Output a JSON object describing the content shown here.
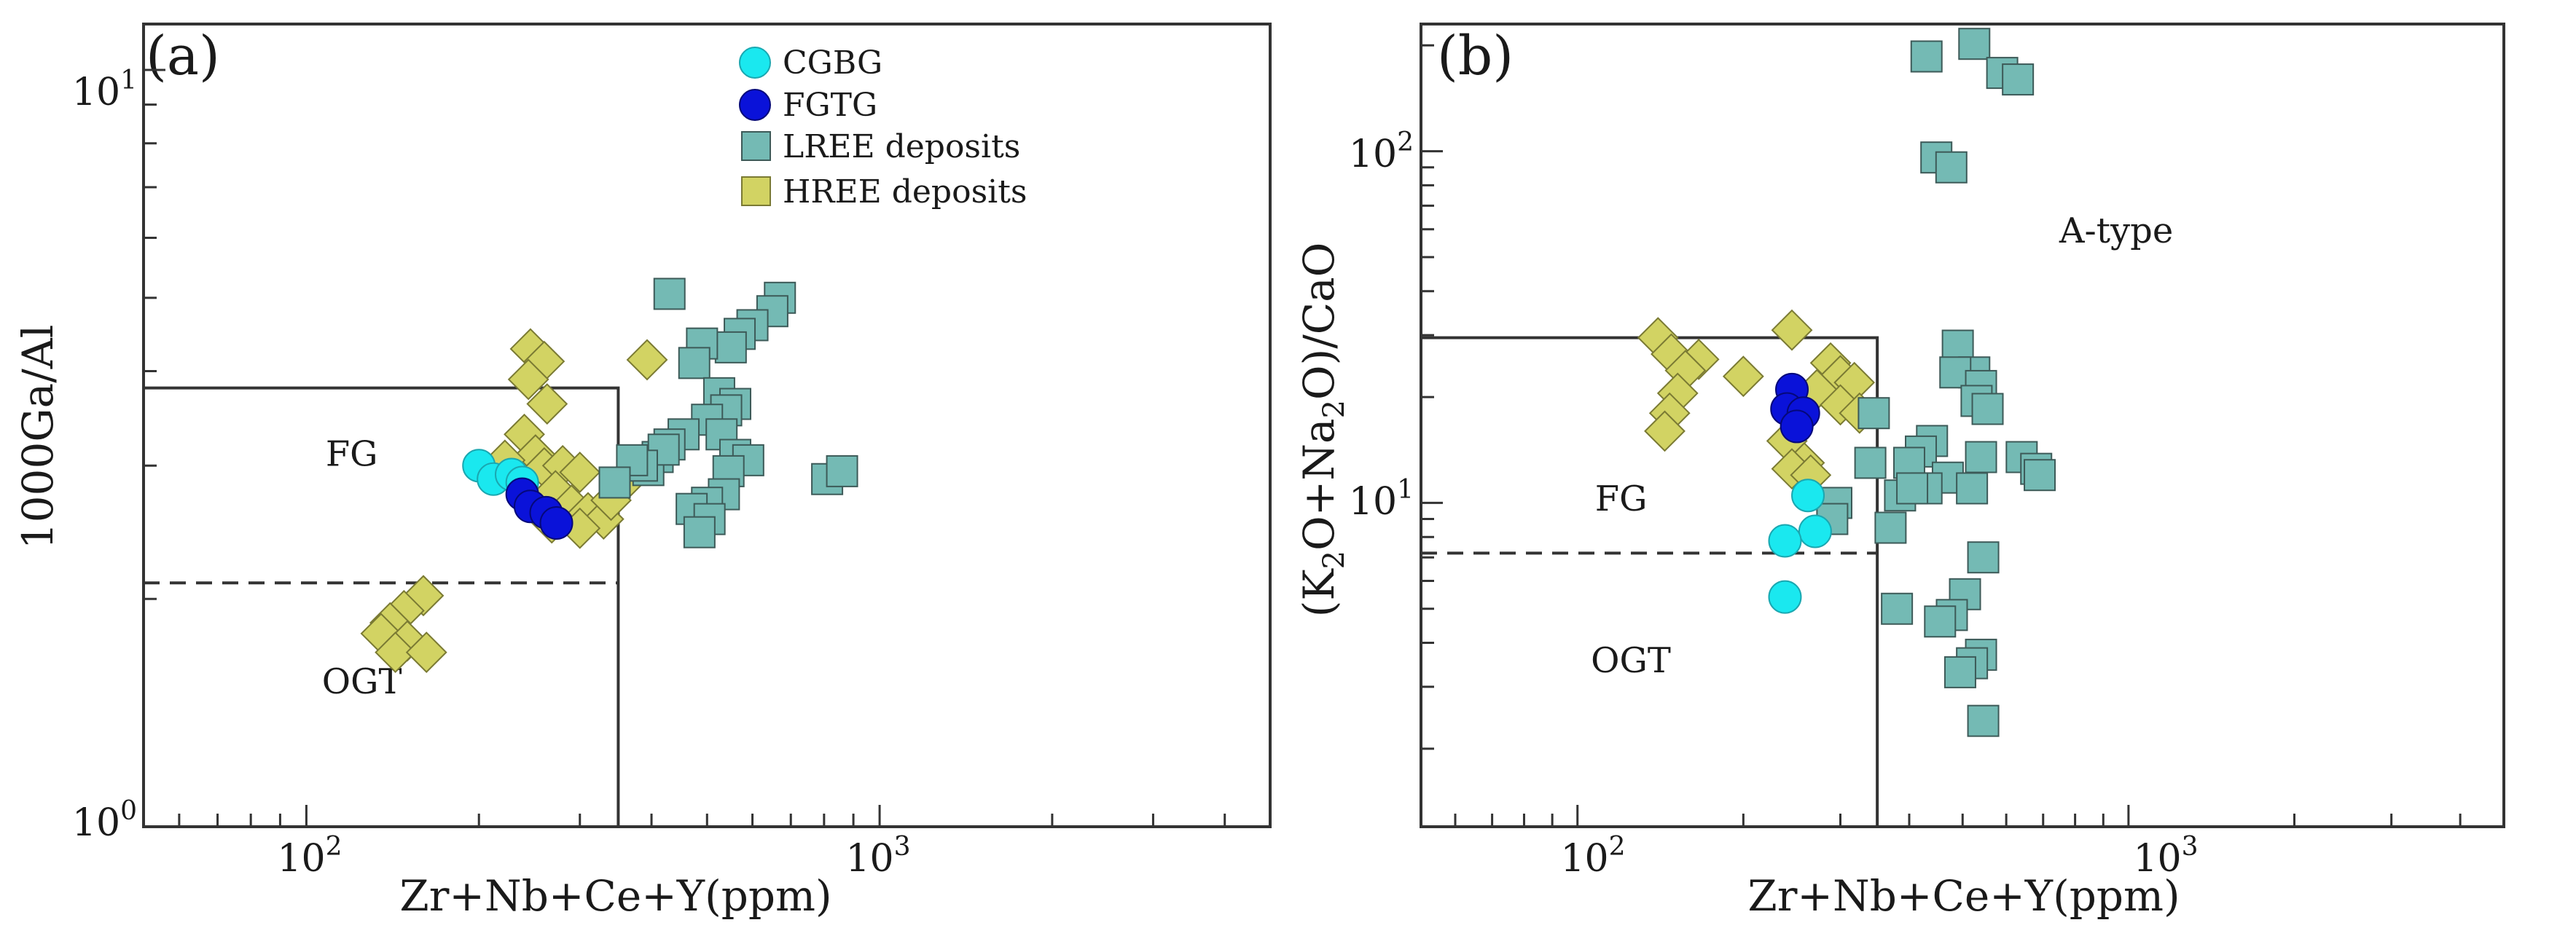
{
  "legend": [
    {
      "label": "CGBG",
      "marker": "circle",
      "color": "#1ae8ef",
      "stroke": "#1aa7b0"
    },
    {
      "label": "FGTG",
      "marker": "circle",
      "color": "#0a12d9",
      "stroke": "#05087a"
    },
    {
      "label": "LREE deposits",
      "marker": "square",
      "color": "#74bab4",
      "stroke": "#3d5a58"
    },
    {
      "label": "HREE deposits",
      "marker": "diamond",
      "color": "#d2d363",
      "stroke": "#7a7a33"
    }
  ],
  "chart_data": [
    {
      "type": "scatter",
      "panel_label": "(a)",
      "xlabel": "Zr+Nb+Ce+Y(ppm)",
      "ylabel": "1000Ga/Al",
      "xscale": "log",
      "yscale": "log",
      "xlim": [
        52,
        4800
      ],
      "ylim": [
        1,
        11.5
      ],
      "x_tick_labels": [
        {
          "value": 100,
          "base": "10",
          "exp": "2"
        },
        {
          "value": 1000,
          "base": "10",
          "exp": "3"
        }
      ],
      "y_tick_labels": [
        {
          "value": 1,
          "base": "10",
          "exp": "0"
        },
        {
          "value": 10,
          "base": "10",
          "exp": "1"
        }
      ],
      "boundaries": [
        {
          "style": "solid",
          "points": [
            [
              52,
              3.8
            ],
            [
              350,
              3.8
            ],
            [
              350,
              1
            ]
          ]
        },
        {
          "style": "dashed",
          "points": [
            [
              52,
              2.1
            ],
            [
              350,
              2.1
            ]
          ]
        }
      ],
      "field_labels": [
        {
          "text": "FG",
          "x": 120,
          "y": 3.0
        },
        {
          "text": "OGT",
          "x": 125,
          "y": 1.5
        }
      ],
      "series": [
        {
          "name": "HREE deposits",
          "points": [
            [
              246,
              4.28
            ],
            [
              260,
              4.12
            ],
            [
              244,
              3.9
            ],
            [
              393,
              4.14
            ],
            [
              263,
              3.62
            ],
            [
              240,
              3.3
            ],
            [
              251,
              3.1
            ],
            [
              222,
              3.05
            ],
            [
              260,
              2.98
            ],
            [
              280,
              3.0
            ],
            [
              300,
              2.94
            ],
            [
              272,
              2.78
            ],
            [
              290,
              2.66
            ],
            [
              310,
              2.6
            ],
            [
              330,
              2.55
            ],
            [
              268,
              2.52
            ],
            [
              360,
              2.86
            ],
            [
              300,
              2.48
            ],
            [
              340,
              2.7
            ],
            [
              160,
              2.02
            ],
            [
              148,
              1.93
            ],
            [
              140,
              1.86
            ],
            [
              135,
              1.8
            ],
            [
              150,
              1.76
            ],
            [
              143,
              1.7
            ],
            [
              162,
              1.7
            ]
          ]
        },
        {
          "name": "LREE deposits",
          "points": [
            [
              430,
              5.06
            ],
            [
              670,
              5.0
            ],
            [
              650,
              4.8
            ],
            [
              600,
              4.6
            ],
            [
              570,
              4.48
            ],
            [
              550,
              4.3
            ],
            [
              490,
              4.35
            ],
            [
              475,
              4.1
            ],
            [
              525,
              3.74
            ],
            [
              560,
              3.62
            ],
            [
              540,
              3.55
            ],
            [
              500,
              3.45
            ],
            [
              455,
              3.3
            ],
            [
              430,
              3.2
            ],
            [
              410,
              3.08
            ],
            [
              395,
              2.96
            ],
            [
              420,
              3.15
            ],
            [
              385,
              3.0
            ],
            [
              370,
              3.05
            ],
            [
              530,
              3.3
            ],
            [
              560,
              3.1
            ],
            [
              590,
              3.05
            ],
            [
              545,
              2.95
            ],
            [
              535,
              2.75
            ],
            [
              500,
              2.68
            ],
            [
              470,
              2.63
            ],
            [
              505,
              2.55
            ],
            [
              485,
              2.45
            ],
            [
              345,
              2.85
            ],
            [
              810,
              2.88
            ],
            [
              860,
              2.95
            ]
          ]
        },
        {
          "name": "CGBG",
          "points": [
            [
              200,
              3.0
            ],
            [
              212,
              2.88
            ],
            [
              228,
              2.92
            ],
            [
              238,
              2.85
            ]
          ]
        },
        {
          "name": "FGTG",
          "points": [
            [
              238,
              2.75
            ],
            [
              246,
              2.65
            ],
            [
              262,
              2.6
            ],
            [
              273,
              2.52
            ]
          ]
        }
      ]
    },
    {
      "type": "scatter",
      "panel_label": "(b)",
      "xlabel": "Zr+Nb+Ce+Y(ppm)",
      "ylabel": "(K2O+Na2O)/CaO",
      "xscale": "log",
      "yscale": "log",
      "xlim": [
        52,
        4800
      ],
      "ylim": [
        1.2,
        230
      ],
      "x_tick_labels": [
        {
          "value": 100,
          "base": "10",
          "exp": "2"
        },
        {
          "value": 1000,
          "base": "10",
          "exp": "3"
        }
      ],
      "y_tick_labels": [
        {
          "value": 10,
          "base": "10",
          "exp": "1"
        },
        {
          "value": 100,
          "base": "10",
          "exp": "2"
        }
      ],
      "boundaries": [
        {
          "style": "solid",
          "points": [
            [
              52,
              29.5
            ],
            [
              350,
              29.5
            ],
            [
              350,
              1.2
            ]
          ]
        },
        {
          "style": "dashed",
          "points": [
            [
              52,
              7.2
            ],
            [
              350,
              7.2
            ]
          ]
        }
      ],
      "field_labels": [
        {
          "text": "FG",
          "x": 120,
          "y": 9.5
        },
        {
          "text": "OGT",
          "x": 125,
          "y": 3.3
        },
        {
          "text": "A-type",
          "x": 950,
          "y": 55
        }
      ],
      "series": [
        {
          "name": "HREE deposits",
          "points": [
            [
              140,
              29.5
            ],
            [
              148,
              26.5
            ],
            [
              166,
              25.6
            ],
            [
              157,
              23.8
            ],
            [
              200,
              22.9
            ],
            [
              152,
              20.5
            ],
            [
              245,
              31.0
            ],
            [
              288,
              25.0
            ],
            [
              300,
              23.0
            ],
            [
              318,
              22.0
            ],
            [
              272,
              21.0
            ],
            [
              300,
              19.0
            ],
            [
              325,
              18.0
            ],
            [
              147,
              18.0
            ],
            [
              144,
              16.0
            ],
            [
              240,
              15.0
            ],
            [
              258,
              13.0
            ],
            [
              245,
              12.5
            ],
            [
              265,
              12.0
            ]
          ]
        },
        {
          "name": "LREE deposits",
          "points": [
            [
              430,
              186
            ],
            [
              525,
              202
            ],
            [
              590,
              167
            ],
            [
              630,
              160
            ],
            [
              448,
              96
            ],
            [
              477,
              90
            ],
            [
              490,
              28
            ],
            [
              525,
              23.5
            ],
            [
              485,
              23.5
            ],
            [
              540,
              21.5
            ],
            [
              530,
              19.5
            ],
            [
              345,
              18.0
            ],
            [
              555,
              18.5
            ],
            [
              440,
              15.0
            ],
            [
              420,
              14.0
            ],
            [
              400,
              13.0
            ],
            [
              540,
              13.5
            ],
            [
              640,
              13.5
            ],
            [
              680,
              12.5
            ],
            [
              690,
              12.0
            ],
            [
              340,
              13.0
            ],
            [
              470,
              11.8
            ],
            [
              430,
              11.0
            ],
            [
              520,
              11.0
            ],
            [
              385,
              10.5
            ],
            [
              405,
              11.0
            ],
            [
              295,
              10.0
            ],
            [
              290,
              9.0
            ],
            [
              370,
              8.5
            ],
            [
              545,
              7.0
            ],
            [
              505,
              5.5
            ],
            [
              380,
              5.0
            ],
            [
              478,
              4.8
            ],
            [
              455,
              4.6
            ],
            [
              540,
              3.7
            ],
            [
              520,
              3.5
            ],
            [
              495,
              3.3
            ],
            [
              545,
              2.4
            ]
          ]
        },
        {
          "name": "CGBG",
          "points": [
            [
              262,
              10.5
            ],
            [
              270,
              8.3
            ],
            [
              238,
              7.8
            ],
            [
              238,
              5.4
            ]
          ]
        },
        {
          "name": "FGTG",
          "points": [
            [
              245,
              21.0
            ],
            [
              240,
              18.5
            ],
            [
              257,
              18.0
            ],
            [
              250,
              16.5
            ]
          ]
        }
      ]
    }
  ]
}
